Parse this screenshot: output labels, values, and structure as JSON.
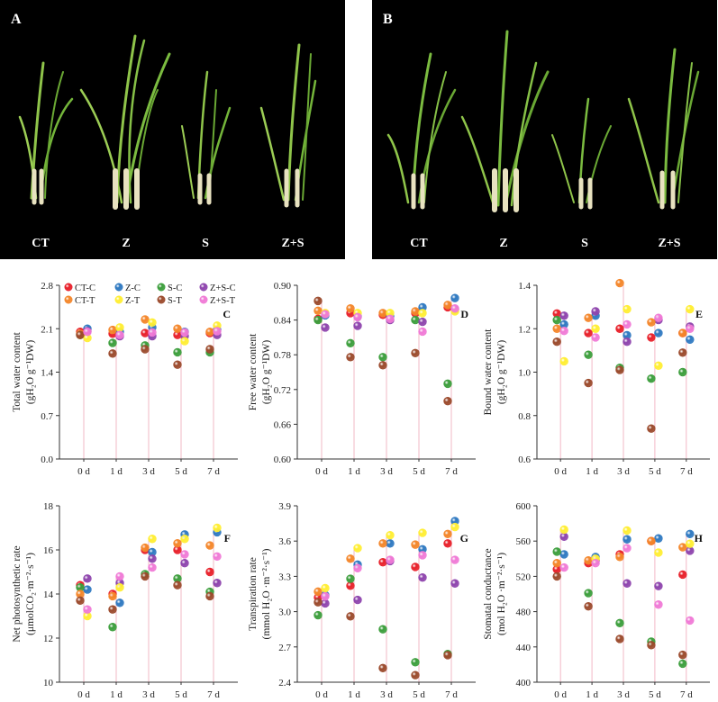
{
  "panels": {
    "A": {
      "letter": "A",
      "labels": [
        "CT",
        "Z",
        "S",
        "Z+S"
      ]
    },
    "B": {
      "letter": "B",
      "labels": [
        "CT",
        "Z",
        "S",
        "Z+S"
      ]
    }
  },
  "legend": [
    {
      "label": "CT-C",
      "color": "#e8202a"
    },
    {
      "label": "Z-C",
      "color": "#2f79c1"
    },
    {
      "label": "S-C",
      "color": "#3c9e3c"
    },
    {
      "label": "Z+S-C",
      "color": "#8e44ad"
    },
    {
      "label": "CT-T",
      "color": "#f4862a"
    },
    {
      "label": "Z-T",
      "color": "#ffee33"
    },
    {
      "label": "S-T",
      "color": "#9b4a2c"
    },
    {
      "label": "Z+S-T",
      "color": "#f07ad6"
    }
  ],
  "chart_data": [
    {
      "type": "scatter",
      "letter": "C",
      "ylabel": "Total water content",
      "yunit": "(gH₂O g⁻¹DW)",
      "ylim": [
        0.0,
        2.8
      ],
      "yticks": [
        "0.0",
        "0.7",
        "1.4",
        "2.1",
        "2.8"
      ],
      "categories": [
        "0 d",
        "1 d",
        "3 d",
        "5 d",
        "7 d"
      ],
      "series": [
        {
          "name": "CT-C",
          "values": [
            2.05,
            2.02,
            2.03,
            2.0,
            2.03
          ]
        },
        {
          "name": "Z-C",
          "values": [
            2.1,
            2.05,
            2.12,
            2.05,
            2.08
          ]
        },
        {
          "name": "S-C",
          "values": [
            2.0,
            1.87,
            1.83,
            1.72,
            1.72
          ]
        },
        {
          "name": "Z+S-C",
          "values": [
            2.06,
            1.98,
            1.98,
            1.98,
            2.0
          ]
        },
        {
          "name": "CT-T",
          "values": [
            2.02,
            2.08,
            2.25,
            2.1,
            2.05
          ]
        },
        {
          "name": "Z-T",
          "values": [
            1.95,
            2.12,
            2.2,
            1.9,
            2.15
          ]
        },
        {
          "name": "S-T",
          "values": [
            2.0,
            1.7,
            1.77,
            1.52,
            1.77
          ]
        },
        {
          "name": "Z+S-T",
          "values": [
            2.05,
            2.0,
            2.04,
            2.04,
            2.06
          ]
        }
      ]
    },
    {
      "type": "scatter",
      "letter": "D",
      "ylabel": "Free water content",
      "yunit": "(gH₂O g⁻¹DW)",
      "ylim": [
        0.6,
        0.9
      ],
      "yticks": [
        "0.60",
        "0.66",
        "0.72",
        "0.78",
        "0.84",
        "0.90"
      ],
      "categories": [
        "0 d",
        "1 d",
        "3 d",
        "5 d",
        "7 d"
      ],
      "series": [
        {
          "name": "CT-C",
          "values": [
            0.842,
            0.852,
            0.849,
            0.852,
            0.862
          ]
        },
        {
          "name": "Z-C",
          "values": [
            0.848,
            0.846,
            0.846,
            0.862,
            0.878
          ]
        },
        {
          "name": "S-C",
          "values": [
            0.84,
            0.8,
            0.776,
            0.84,
            0.73
          ]
        },
        {
          "name": "Z+S-C",
          "values": [
            0.827,
            0.83,
            0.84,
            0.837,
            0.858
          ]
        },
        {
          "name": "CT-T",
          "values": [
            0.856,
            0.86,
            0.852,
            0.855,
            0.866
          ]
        },
        {
          "name": "Z-T",
          "values": [
            0.852,
            0.852,
            0.852,
            0.852,
            0.855
          ]
        },
        {
          "name": "S-T",
          "values": [
            0.873,
            0.776,
            0.762,
            0.783,
            0.7
          ]
        },
        {
          "name": "Z+S-T",
          "values": [
            0.85,
            0.845,
            0.842,
            0.82,
            0.86
          ]
        }
      ]
    },
    {
      "type": "scatter",
      "letter": "E",
      "ylabel": "Bound water content",
      "yunit": "(gH₂O g⁻¹DW)",
      "ylim": [
        0.6,
        1.4
      ],
      "yticks": [
        "0.6",
        "0.8",
        "1.0",
        "1.2",
        "1.4"
      ],
      "categories": [
        "0 d",
        "1 d",
        "3 d",
        "5 d",
        "7 d"
      ],
      "series": [
        {
          "name": "CT-C",
          "values": [
            1.27,
            1.18,
            1.2,
            1.16,
            1.18
          ]
        },
        {
          "name": "Z-C",
          "values": [
            1.22,
            1.26,
            1.17,
            1.18,
            1.15
          ]
        },
        {
          "name": "S-C",
          "values": [
            1.24,
            1.08,
            1.02,
            0.97,
            1.0
          ]
        },
        {
          "name": "Z+S-C",
          "values": [
            1.26,
            1.28,
            1.14,
            1.24,
            1.21
          ]
        },
        {
          "name": "CT-T",
          "values": [
            1.2,
            1.25,
            1.41,
            1.23,
            1.18
          ]
        },
        {
          "name": "Z-T",
          "values": [
            1.05,
            1.2,
            1.29,
            1.03,
            1.29
          ]
        },
        {
          "name": "S-T",
          "values": [
            1.14,
            0.95,
            1.01,
            0.74,
            1.09
          ]
        },
        {
          "name": "Z+S-T",
          "values": [
            1.19,
            1.16,
            1.22,
            1.25,
            1.2
          ]
        }
      ]
    },
    {
      "type": "scatter",
      "letter": "F",
      "ylabel": "Net photosynthetic rate",
      "yunit": "(μmolCO₂·m⁻²·s⁻¹)",
      "ylim": [
        10,
        18
      ],
      "yticks": [
        "10",
        "12",
        "14",
        "16",
        "18"
      ],
      "categories": [
        "0 d",
        "1 d",
        "3 d",
        "5 d",
        "7 d"
      ],
      "series": [
        {
          "name": "CT-C",
          "values": [
            14.4,
            14.0,
            16.0,
            16.0,
            15.0
          ]
        },
        {
          "name": "Z-C",
          "values": [
            14.2,
            13.6,
            15.9,
            16.7,
            16.8
          ]
        },
        {
          "name": "S-C",
          "values": [
            14.3,
            12.5,
            14.9,
            14.7,
            14.1
          ]
        },
        {
          "name": "Z+S-C",
          "values": [
            14.7,
            14.5,
            15.6,
            15.4,
            14.5
          ]
        },
        {
          "name": "CT-T",
          "values": [
            14.0,
            13.9,
            16.1,
            16.3,
            16.2
          ]
        },
        {
          "name": "Z-T",
          "values": [
            13.0,
            14.3,
            16.5,
            16.5,
            17.0
          ]
        },
        {
          "name": "S-T",
          "values": [
            13.7,
            13.3,
            14.8,
            14.4,
            13.9
          ]
        },
        {
          "name": "Z+S-T",
          "values": [
            13.3,
            14.8,
            15.2,
            15.8,
            15.7
          ]
        }
      ]
    },
    {
      "type": "scatter",
      "letter": "G",
      "ylabel": "Transpiration rate",
      "yunit": "(mmol H₂O ·m⁻²·s⁻¹)",
      "ylim": [
        2.4,
        3.9
      ],
      "yticks": [
        "2.4",
        "2.7",
        "3.0",
        "3.3",
        "3.6",
        "3.9"
      ],
      "categories": [
        "0 d",
        "1 d",
        "3 d",
        "5 d",
        "7 d"
      ],
      "series": [
        {
          "name": "CT-C",
          "values": [
            3.12,
            3.22,
            3.42,
            3.38,
            3.58
          ]
        },
        {
          "name": "Z-C",
          "values": [
            3.14,
            3.4,
            3.58,
            3.53,
            3.77
          ]
        },
        {
          "name": "S-C",
          "values": [
            2.97,
            3.28,
            2.85,
            2.57,
            2.64
          ]
        },
        {
          "name": "Z+S-C",
          "values": [
            3.07,
            3.1,
            3.43,
            3.29,
            3.24
          ]
        },
        {
          "name": "CT-T",
          "values": [
            3.17,
            3.45,
            3.58,
            3.57,
            3.66
          ]
        },
        {
          "name": "Z-T",
          "values": [
            3.2,
            3.54,
            3.65,
            3.67,
            3.72
          ]
        },
        {
          "name": "S-T",
          "values": [
            3.08,
            2.96,
            2.52,
            2.46,
            2.63
          ]
        },
        {
          "name": "Z+S-T",
          "values": [
            3.13,
            3.37,
            3.44,
            3.48,
            3.44
          ]
        }
      ]
    },
    {
      "type": "scatter",
      "letter": "H",
      "ylabel": "Stomatal conductance",
      "yunit": "(mol H₂O ·m⁻²·s⁻¹)",
      "ylim": [
        400,
        600
      ],
      "yticks": [
        "400",
        "440",
        "480",
        "520",
        "560",
        "600"
      ],
      "categories": [
        "0 d",
        "1 d",
        "3 d",
        "5 d",
        "7 d"
      ],
      "series": [
        {
          "name": "CT-C",
          "values": [
            528,
            535,
            545,
            560,
            522
          ]
        },
        {
          "name": "Z-C",
          "values": [
            545,
            542,
            562,
            563,
            568
          ]
        },
        {
          "name": "S-C",
          "values": [
            548,
            501,
            467,
            446,
            421
          ]
        },
        {
          "name": "Z+S-C",
          "values": [
            565,
            538,
            512,
            509,
            549
          ]
        },
        {
          "name": "CT-T",
          "values": [
            535,
            538,
            542,
            560,
            553
          ]
        },
        {
          "name": "Z-T",
          "values": [
            573,
            540,
            572,
            547,
            557
          ]
        },
        {
          "name": "S-T",
          "values": [
            520,
            486,
            449,
            442,
            431
          ]
        },
        {
          "name": "Z+S-T",
          "values": [
            530,
            535,
            552,
            488,
            470
          ]
        }
      ]
    }
  ]
}
